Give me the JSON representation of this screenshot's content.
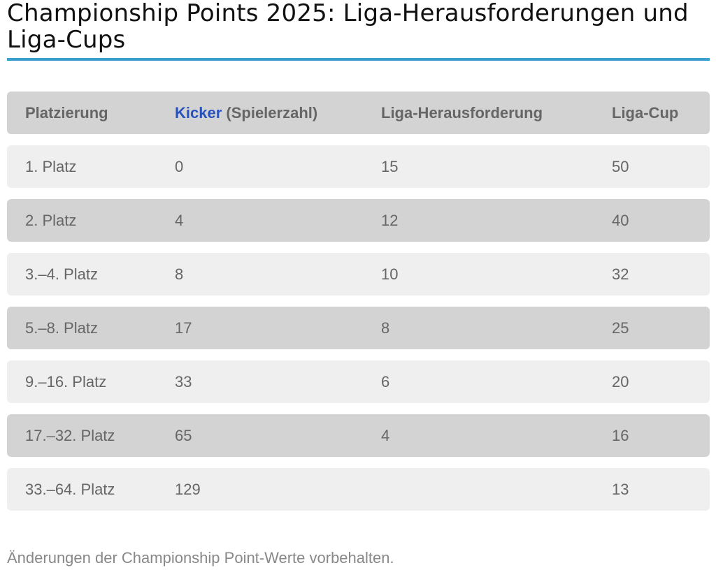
{
  "title": "Championship Points 2025: Liga-Herausforderungen und Liga-Cups",
  "table": {
    "headers": {
      "placement": "Platzierung",
      "kicker_link": "Kicker",
      "kicker_suffix": " (Spielerzahl)",
      "challenge": "Liga-Herausforderung",
      "cup": "Liga-Cup"
    },
    "rows": [
      {
        "placement": "1. Platz",
        "kicker": "0",
        "challenge": "15",
        "cup": "50"
      },
      {
        "placement": "2. Platz",
        "kicker": "4",
        "challenge": "12",
        "cup": "40"
      },
      {
        "placement": "3.–4. Platz",
        "kicker": "8",
        "challenge": "10",
        "cup": "32"
      },
      {
        "placement": "5.–8. Platz",
        "kicker": "17",
        "challenge": "8",
        "cup": "25"
      },
      {
        "placement": "9.–16. Platz",
        "kicker": "33",
        "challenge": "6",
        "cup": "20"
      },
      {
        "placement": "17.–32. Platz",
        "kicker": "65",
        "challenge": "4",
        "cup": "16"
      },
      {
        "placement": "33.–64. Platz",
        "kicker": "129",
        "challenge": "",
        "cup": "13"
      }
    ]
  },
  "footnote": "Änderungen der Championship Point-Werte vorbehalten.",
  "colors": {
    "accent_rule": "#3a9fcf",
    "link": "#2a52be",
    "row_light": "#efefef",
    "row_dark": "#d3d3d3"
  }
}
